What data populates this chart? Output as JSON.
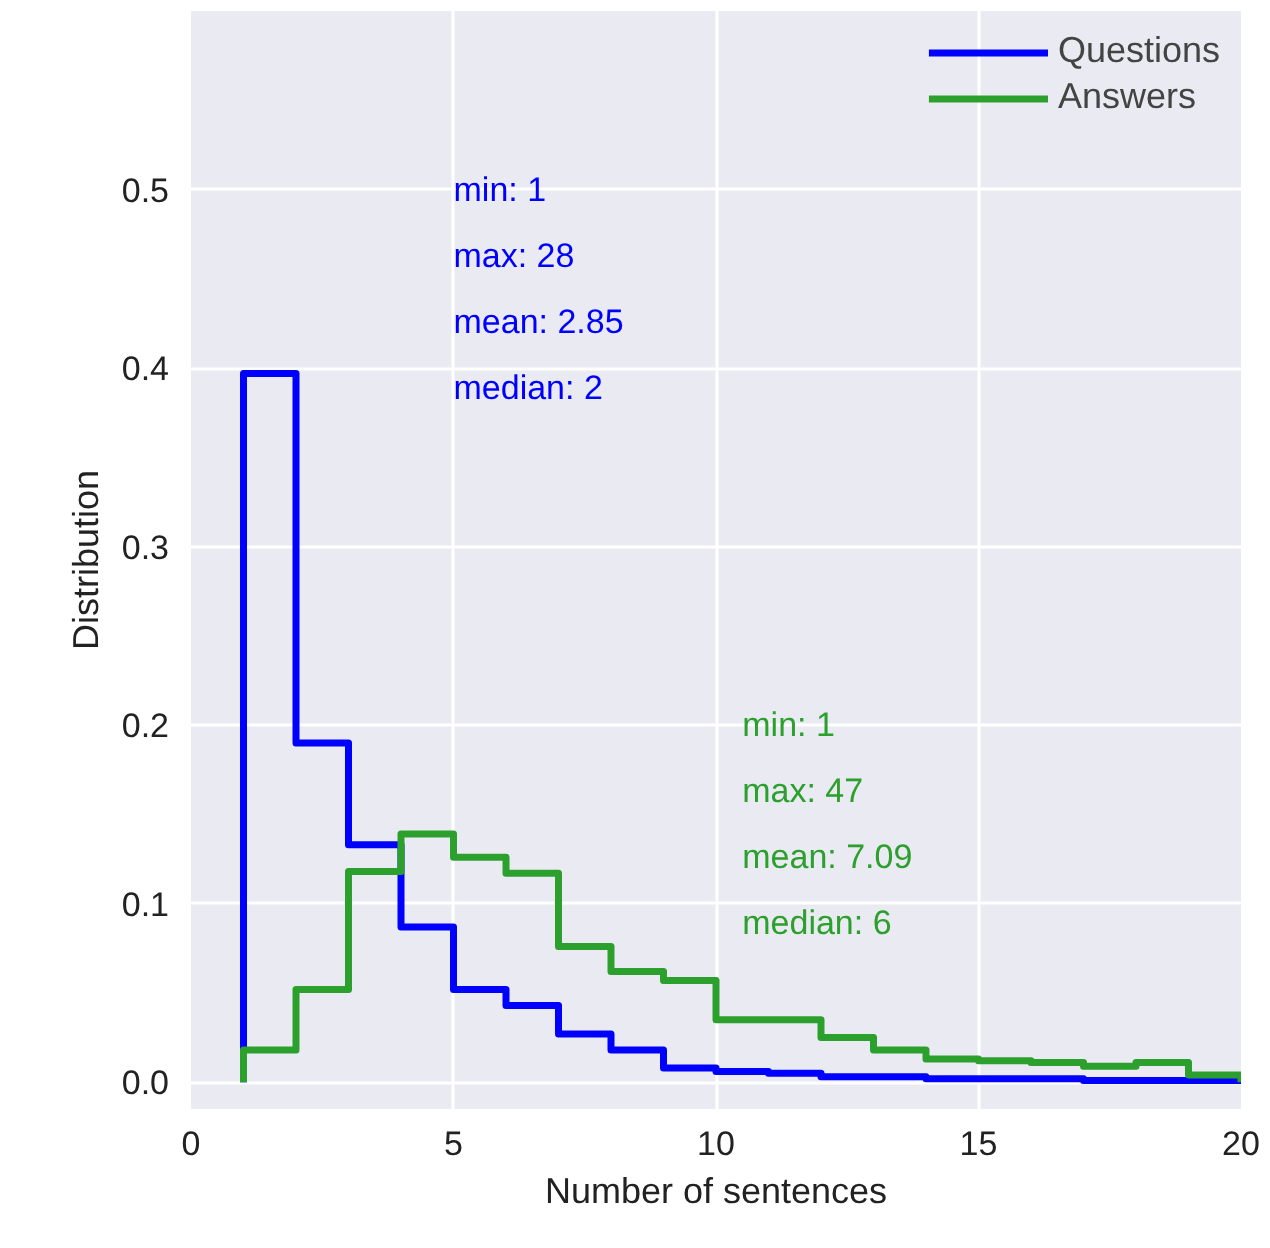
{
  "chart_data": {
    "type": "histogram",
    "xlabel": "Number of sentences",
    "ylabel": "Distribution",
    "bins": [
      1,
      2,
      3,
      4,
      5,
      6,
      7,
      8,
      9,
      10,
      11,
      12,
      13,
      14,
      15,
      16,
      17,
      18,
      19,
      20
    ],
    "series": [
      {
        "name": "Questions",
        "color": "#0000ff",
        "values": [
          0.397,
          0.19,
          0.133,
          0.087,
          0.052,
          0.043,
          0.027,
          0.018,
          0.008,
          0.006,
          0.005,
          0.003,
          0.003,
          0.002,
          0.002,
          0.002,
          0.001,
          0.001,
          0.001
        ]
      },
      {
        "name": "Answers",
        "color": "#2ca02c",
        "values": [
          0.018,
          0.052,
          0.118,
          0.139,
          0.126,
          0.117,
          0.076,
          0.062,
          0.057,
          0.035,
          0.035,
          0.025,
          0.018,
          0.013,
          0.012,
          0.011,
          0.009,
          0.011,
          0.004
        ]
      }
    ],
    "annotations": [
      "min: 1\nmax: 28\nmean: 2.85\nmedian: 2",
      "min: 1\nmax: 47\nmean: 7.09\nmedian: 6"
    ],
    "xlim": [
      0,
      20
    ],
    "ylim": [
      -0.015,
      0.6
    ],
    "xticks": [
      0,
      5,
      10,
      15,
      20
    ],
    "yticks": [
      {
        "value": 0,
        "label": "0.0"
      },
      0.1,
      0.2,
      0.3,
      0.4,
      0.5
    ],
    "grid": true,
    "legend": "top right"
  }
}
